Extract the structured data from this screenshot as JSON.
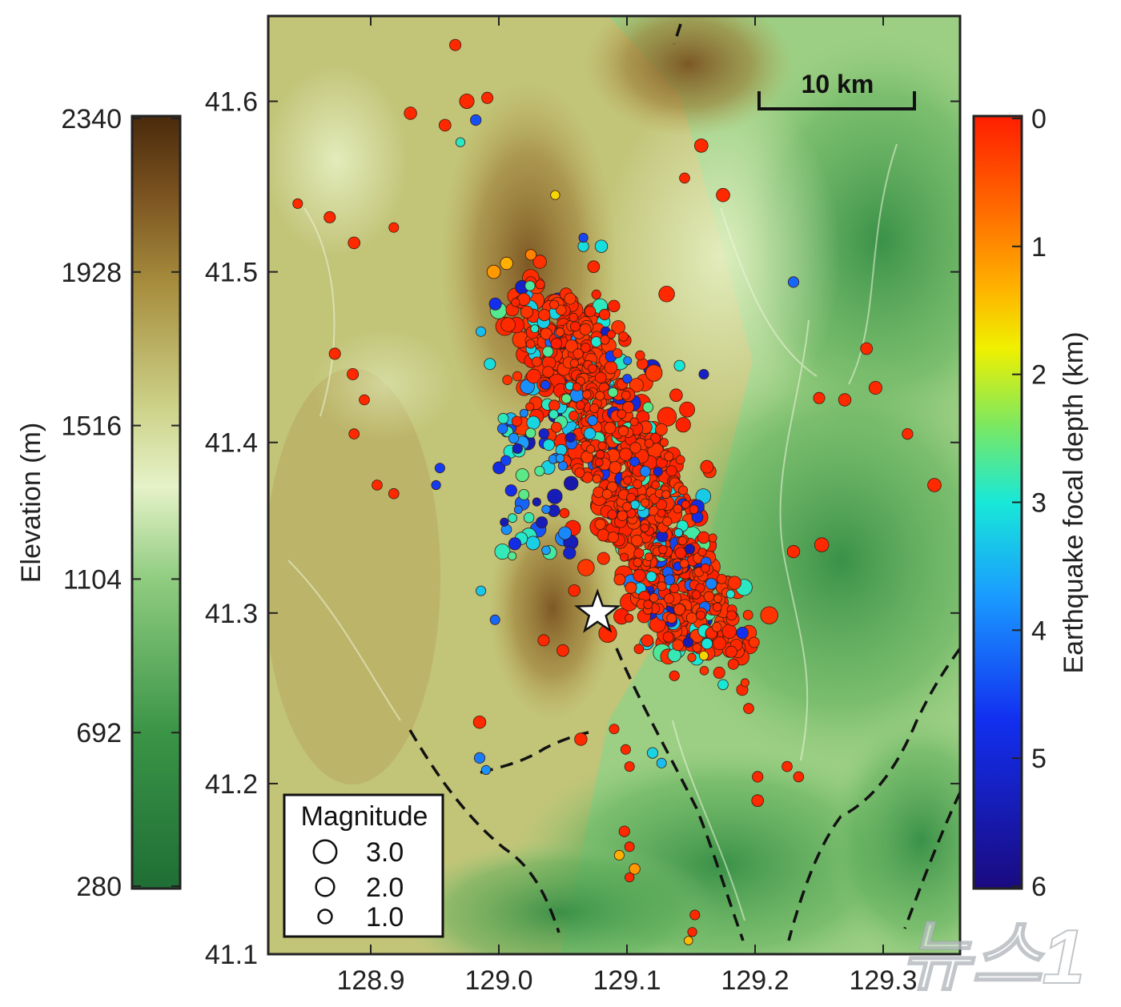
{
  "elevation_colorbar": {
    "label": "Elevation (m)",
    "ticks": [
      "2340",
      "1928",
      "1516",
      "1104",
      "692",
      "280"
    ],
    "colors": [
      "#4a2a0c",
      "#8a6028",
      "#b3a048",
      "#d9dc9a",
      "#eef3d0",
      "#a9d48c",
      "#54a651",
      "#1f7035"
    ]
  },
  "depth_colorbar": {
    "label": "Earthquake focal depth (km)",
    "ticks": [
      "0",
      "1",
      "2",
      "3",
      "4",
      "5",
      "6"
    ],
    "colors": [
      "#ff1e00",
      "#ff8a00",
      "#f7f700",
      "#5ee07a",
      "#10e8f0",
      "#1a7fff",
      "#1020e0",
      "#1a0a80"
    ]
  },
  "map": {
    "lat_ticks": [
      "41.6",
      "41.5",
      "41.4",
      "41.3",
      "41.2",
      "41.1"
    ],
    "lon_ticks": [
      "128.9",
      "129.0",
      "129.1",
      "129.2",
      "129.3"
    ],
    "lat_range": [
      41.1,
      41.65
    ],
    "lon_range": [
      128.82,
      129.36
    ],
    "scale_bar_label": "10 km",
    "mainshock": {
      "lat": 41.3,
      "lon": 129.077
    }
  },
  "legend": {
    "title": "Magnitude",
    "items": [
      {
        "label": "3.0",
        "magnitude": 3.0
      },
      {
        "label": "2.0",
        "magnitude": 2.0
      },
      {
        "label": "1.0",
        "magnitude": 1.0
      }
    ]
  },
  "watermark": "뉴스1"
}
